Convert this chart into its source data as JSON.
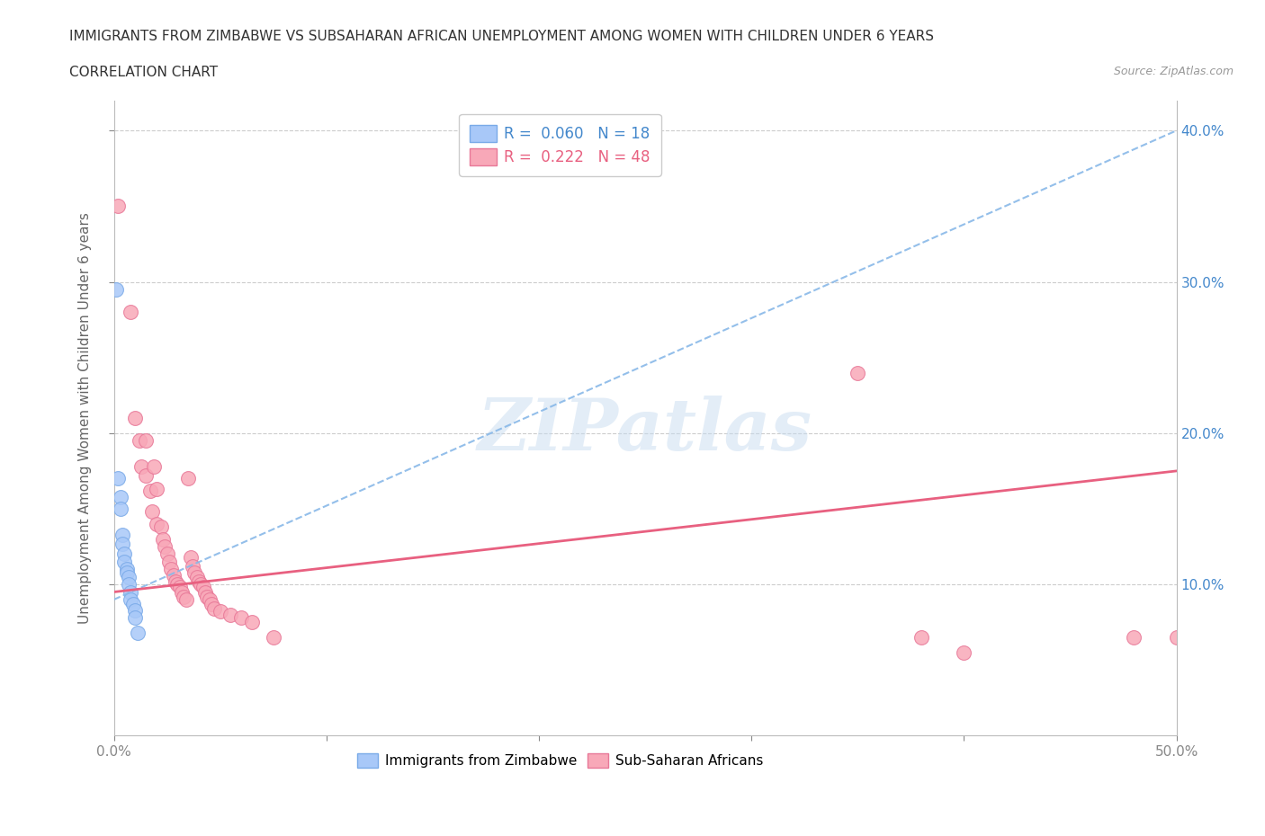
{
  "title": "IMMIGRANTS FROM ZIMBABWE VS SUBSAHARAN AFRICAN UNEMPLOYMENT AMONG WOMEN WITH CHILDREN UNDER 6 YEARS",
  "subtitle": "CORRELATION CHART",
  "source": "Source: ZipAtlas.com",
  "ylabel": "Unemployment Among Women with Children Under 6 years",
  "xlim": [
    0.0,
    0.5
  ],
  "ylim": [
    0.0,
    0.42
  ],
  "ytick_positions": [
    0.1,
    0.2,
    0.3,
    0.4
  ],
  "ytick_labels": [
    "10.0%",
    "20.0%",
    "30.0%",
    "40.0%"
  ],
  "zimbabwe_color": "#a8c8f8",
  "zimbabwe_edge": "#7aaae8",
  "subsaharan_color": "#f8a8b8",
  "subsaharan_edge": "#e87898",
  "zimbabwe_line_color": "#88b8e8",
  "subsaharan_line_color": "#e8607880",
  "background_color": "#ffffff",
  "watermark": "ZIPatlas",
  "zim_R": 0.06,
  "zim_N": 18,
  "sub_R": 0.222,
  "sub_N": 48,
  "zimbabwe_points": [
    [
      0.001,
      0.295
    ],
    [
      0.002,
      0.17
    ],
    [
      0.003,
      0.158
    ],
    [
      0.003,
      0.15
    ],
    [
      0.004,
      0.133
    ],
    [
      0.004,
      0.127
    ],
    [
      0.005,
      0.12
    ],
    [
      0.005,
      0.115
    ],
    [
      0.006,
      0.11
    ],
    [
      0.006,
      0.108
    ],
    [
      0.007,
      0.105
    ],
    [
      0.007,
      0.1
    ],
    [
      0.008,
      0.095
    ],
    [
      0.008,
      0.09
    ],
    [
      0.009,
      0.087
    ],
    [
      0.01,
      0.083
    ],
    [
      0.01,
      0.078
    ],
    [
      0.011,
      0.068
    ]
  ],
  "subsaharan_points": [
    [
      0.002,
      0.35
    ],
    [
      0.008,
      0.28
    ],
    [
      0.01,
      0.21
    ],
    [
      0.012,
      0.195
    ],
    [
      0.013,
      0.178
    ],
    [
      0.015,
      0.195
    ],
    [
      0.015,
      0.172
    ],
    [
      0.017,
      0.162
    ],
    [
      0.018,
      0.148
    ],
    [
      0.019,
      0.178
    ],
    [
      0.02,
      0.163
    ],
    [
      0.02,
      0.14
    ],
    [
      0.022,
      0.138
    ],
    [
      0.023,
      0.13
    ],
    [
      0.024,
      0.125
    ],
    [
      0.025,
      0.12
    ],
    [
      0.026,
      0.115
    ],
    [
      0.027,
      0.11
    ],
    [
      0.028,
      0.106
    ],
    [
      0.029,
      0.102
    ],
    [
      0.03,
      0.1
    ],
    [
      0.031,
      0.098
    ],
    [
      0.032,
      0.095
    ],
    [
      0.033,
      0.092
    ],
    [
      0.034,
      0.09
    ],
    [
      0.035,
      0.17
    ],
    [
      0.036,
      0.118
    ],
    [
      0.037,
      0.112
    ],
    [
      0.038,
      0.108
    ],
    [
      0.039,
      0.105
    ],
    [
      0.04,
      0.102
    ],
    [
      0.041,
      0.1
    ],
    [
      0.042,
      0.098
    ],
    [
      0.043,
      0.095
    ],
    [
      0.044,
      0.092
    ],
    [
      0.045,
      0.09
    ],
    [
      0.046,
      0.087
    ],
    [
      0.047,
      0.084
    ],
    [
      0.05,
      0.082
    ],
    [
      0.055,
      0.08
    ],
    [
      0.06,
      0.078
    ],
    [
      0.065,
      0.075
    ],
    [
      0.075,
      0.065
    ],
    [
      0.35,
      0.24
    ],
    [
      0.38,
      0.065
    ],
    [
      0.4,
      0.055
    ],
    [
      0.48,
      0.065
    ],
    [
      0.5,
      0.065
    ]
  ],
  "zim_trend": [
    0.0,
    0.5,
    0.09,
    0.4
  ],
  "sub_trend": [
    0.0,
    0.5,
    0.095,
    0.175
  ]
}
